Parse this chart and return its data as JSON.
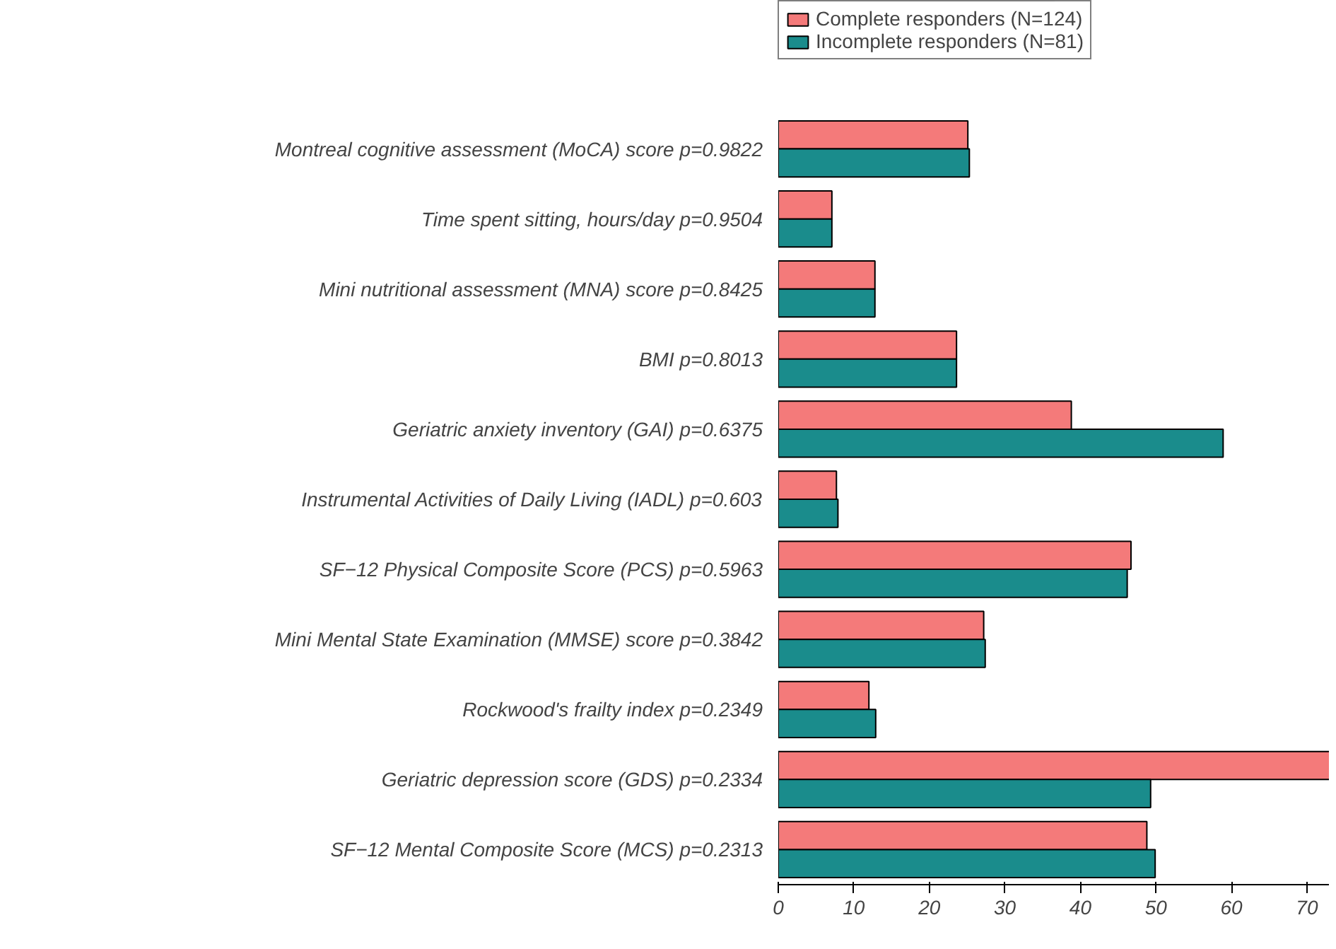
{
  "chart_data": {
    "type": "bar",
    "orientation": "horizontal",
    "categories": [
      "Montreal cognitive assessment (MoCA) score p=0.9822",
      "Time spent sitting, hours/day p=0.9504",
      "Mini nutritional assessment (MNA) score p=0.8425",
      "BMI p=0.8013",
      "Geriatric anxiety inventory (GAI) p=0.6375",
      "Instrumental Activities of Daily Living (IADL) p=0.603",
      "SF−12 Physical Composite Score (PCS) p=0.5963",
      "Mini Mental State Examination (MMSE) score p=0.3842",
      "Rockwood's frailty index p=0.2349",
      "Geriatric depression score (GDS) p=0.2334",
      "SF−12 Mental Composite Score (MCS) p=0.2313"
    ],
    "series": [
      {
        "name": "Complete responders (N=124)",
        "color": "#f47a7a",
        "values": [
          25.1,
          7.1,
          12.8,
          23.6,
          38.8,
          7.7,
          46.7,
          27.2,
          12.0,
          73,
          48.8
        ]
      },
      {
        "name": "Incomplete responders (N=81)",
        "color": "#1a8c8c",
        "values": [
          25.3,
          7.1,
          12.8,
          23.6,
          58.9,
          7.9,
          46.2,
          27.4,
          12.9,
          49.3,
          49.9
        ]
      }
    ],
    "xlim": [
      0,
      73
    ],
    "xticks": [
      0,
      10,
      20,
      30,
      40,
      50,
      60,
      70
    ],
    "grid": false,
    "legend": "top"
  }
}
